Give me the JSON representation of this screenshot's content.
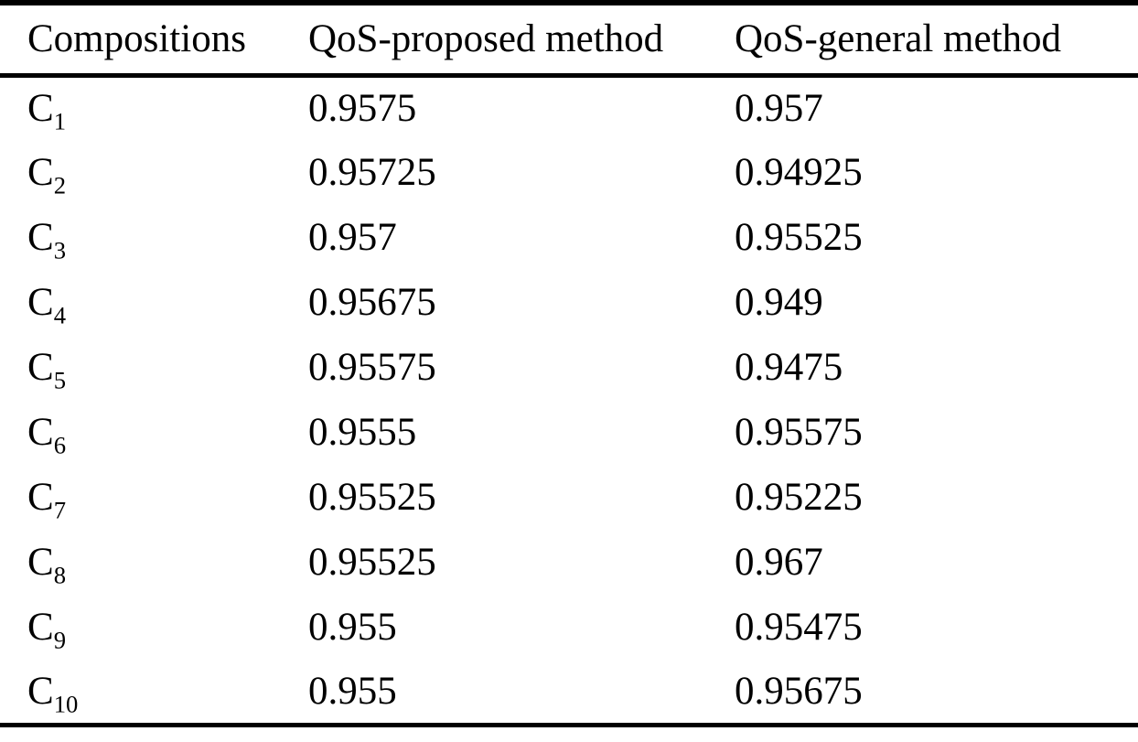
{
  "table": {
    "columns": [
      {
        "label": "Compositions"
      },
      {
        "label": "QoS-proposed method"
      },
      {
        "label": "QoS-general method"
      }
    ],
    "rows": [
      {
        "composition_base": "C",
        "composition_sub": "1",
        "qos_proposed": "0.9575",
        "qos_general": "0.957"
      },
      {
        "composition_base": "C",
        "composition_sub": "2",
        "qos_proposed": "0.95725",
        "qos_general": "0.94925"
      },
      {
        "composition_base": "C",
        "composition_sub": "3",
        "qos_proposed": "0.957",
        "qos_general": "0.95525"
      },
      {
        "composition_base": "C",
        "composition_sub": "4",
        "qos_proposed": "0.95675",
        "qos_general": "0.949"
      },
      {
        "composition_base": "C",
        "composition_sub": "5",
        "qos_proposed": "0.95575",
        "qos_general": "0.9475"
      },
      {
        "composition_base": "C",
        "composition_sub": "6",
        "qos_proposed": "0.9555",
        "qos_general": "0.95575"
      },
      {
        "composition_base": "C",
        "composition_sub": "7",
        "qos_proposed": "0.95525",
        "qos_general": "0.95225"
      },
      {
        "composition_base": "C",
        "composition_sub": "8",
        "qos_proposed": "0.95525",
        "qos_general": "0.967"
      },
      {
        "composition_base": "C",
        "composition_sub": "9",
        "qos_proposed": "0.955",
        "qos_general": "0.95475"
      },
      {
        "composition_base": "C",
        "composition_sub": "10",
        "qos_proposed": "0.955",
        "qos_general": "0.95675"
      }
    ]
  },
  "colors": {
    "text": "#000000",
    "background": "#ffffff",
    "rule": "#000000"
  }
}
